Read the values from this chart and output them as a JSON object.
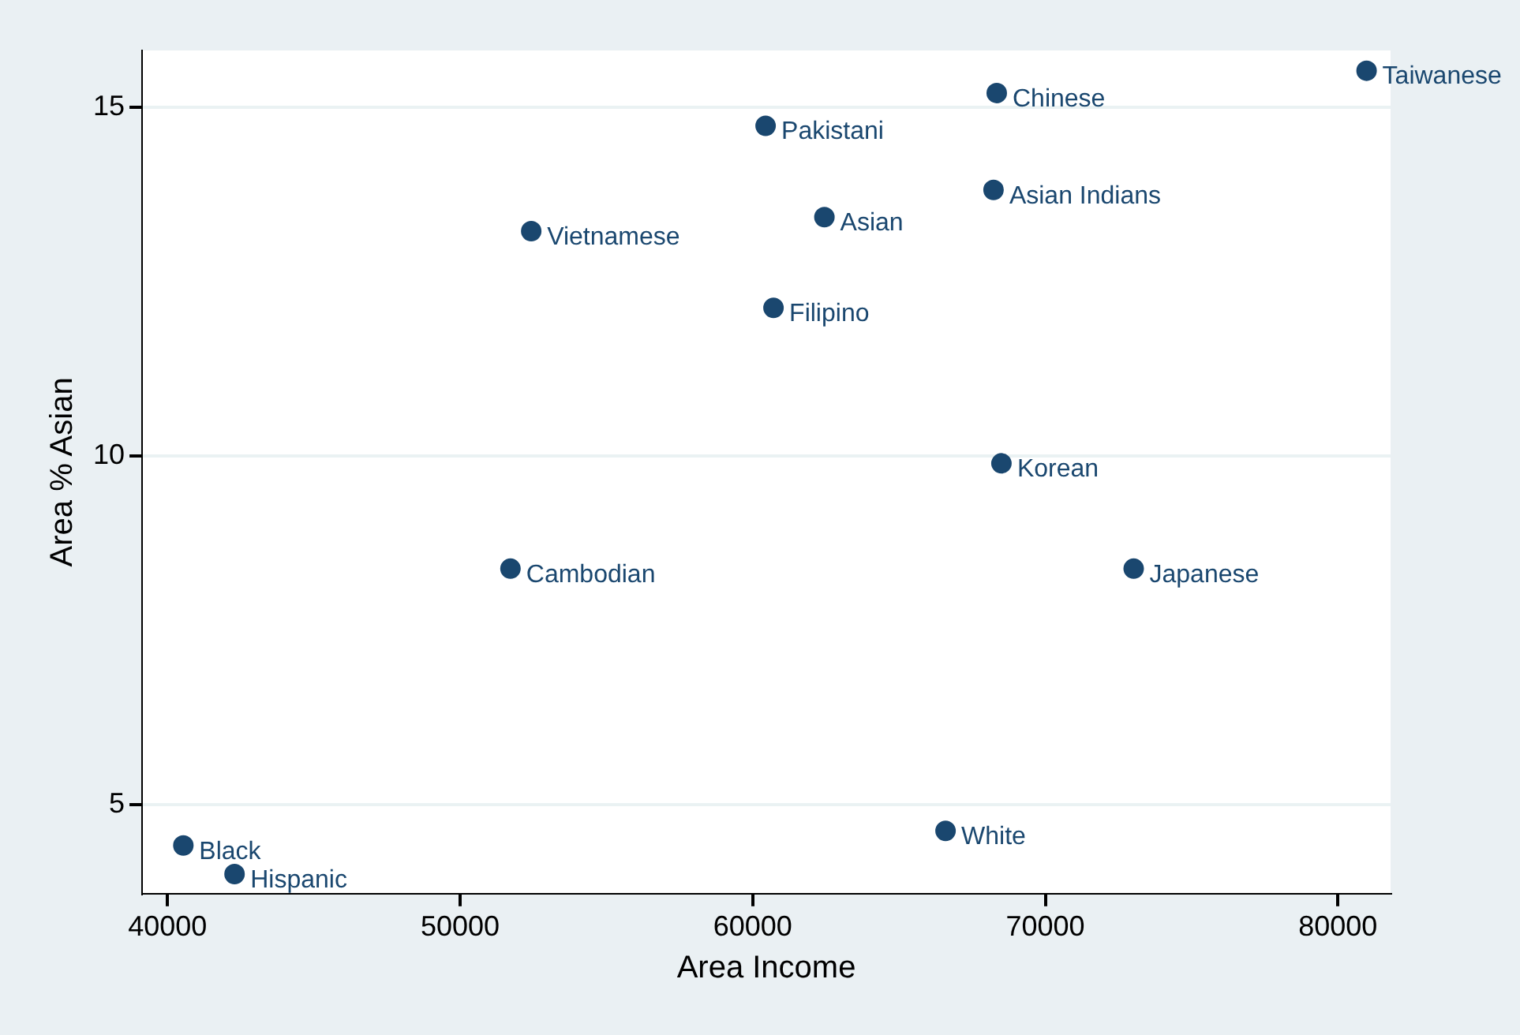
{
  "chart_data": {
    "type": "scatter",
    "xlabel": "Area Income",
    "ylabel": "Area % Asian",
    "x": [
      80980,
      68340,
      60440,
      68230,
      62450,
      52430,
      60710,
      68500,
      51720,
      73020,
      66590,
      40540,
      42290
    ],
    "values": [
      15.52,
      15.2,
      14.73,
      13.81,
      13.42,
      13.22,
      12.12,
      9.89,
      8.38,
      8.38,
      4.62,
      4.41,
      4.0
    ],
    "color": "#1a476f",
    "marker": "circle",
    "xlim": [
      39130,
      81800
    ],
    "ylim": [
      3.72,
      15.81
    ],
    "xticks": [
      40000,
      50000,
      60000,
      70000,
      80000
    ],
    "yticks": [
      5,
      10,
      15
    ],
    "grid": "y",
    "legend": false,
    "annotations": [
      {
        "text": "Taiwanese",
        "x": 80980,
        "y": 15.52
      },
      {
        "text": "Chinese",
        "x": 68340,
        "y": 15.2
      },
      {
        "text": "Pakistani",
        "x": 60440,
        "y": 14.73
      },
      {
        "text": "Asian Indians",
        "x": 68230,
        "y": 13.81
      },
      {
        "text": "Asian",
        "x": 62450,
        "y": 13.42
      },
      {
        "text": "Vietnamese",
        "x": 52430,
        "y": 13.22
      },
      {
        "text": "Filipino",
        "x": 60710,
        "y": 12.12
      },
      {
        "text": "Korean",
        "x": 68500,
        "y": 9.89
      },
      {
        "text": "Cambodian",
        "x": 51720,
        "y": 8.38
      },
      {
        "text": "Japanese",
        "x": 73020,
        "y": 8.38
      },
      {
        "text": "White",
        "x": 66590,
        "y": 4.62
      },
      {
        "text": "Black",
        "x": 40540,
        "y": 4.41
      },
      {
        "text": "Hispanic",
        "x": 42290,
        "y": 4.0
      }
    ]
  }
}
